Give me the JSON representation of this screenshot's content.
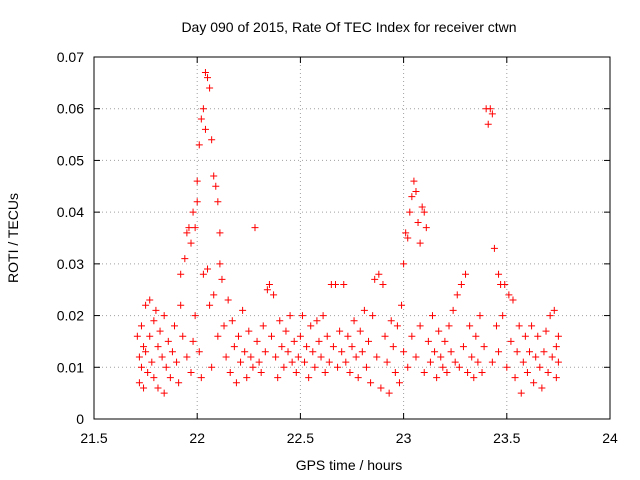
{
  "chart_data": {
    "type": "scatter",
    "title": "Day 090 of 2015, Rate Of TEC Index for receiver ctwn",
    "xlabel": "GPS time / hours",
    "ylabel": "ROTI / TECUs",
    "xlim": [
      21.5,
      24
    ],
    "ylim": [
      0,
      0.07
    ],
    "xticks": [
      "21.5",
      "22",
      "22.5",
      "23",
      "23.5",
      "24"
    ],
    "yticks": [
      "0",
      "0.01",
      "0.02",
      "0.03",
      "0.04",
      "0.05",
      "0.06",
      "0.07"
    ],
    "grid": true,
    "marker": "plus",
    "color": "#ff0000",
    "series": [
      {
        "name": "ROTI",
        "points": [
          [
            21.71,
            0.016
          ],
          [
            21.72,
            0.012
          ],
          [
            21.72,
            0.007
          ],
          [
            21.73,
            0.018
          ],
          [
            21.73,
            0.01
          ],
          [
            21.74,
            0.014
          ],
          [
            21.74,
            0.006
          ],
          [
            21.75,
            0.022
          ],
          [
            21.75,
            0.013
          ],
          [
            21.76,
            0.009
          ],
          [
            21.77,
            0.023
          ],
          [
            21.77,
            0.016
          ],
          [
            21.78,
            0.011
          ],
          [
            21.79,
            0.019
          ],
          [
            21.79,
            0.008
          ],
          [
            21.8,
            0.021
          ],
          [
            21.81,
            0.014
          ],
          [
            21.81,
            0.006
          ],
          [
            21.82,
            0.017
          ],
          [
            21.83,
            0.012
          ],
          [
            21.84,
            0.005
          ],
          [
            21.84,
            0.02
          ],
          [
            21.85,
            0.01
          ],
          [
            21.86,
            0.015
          ],
          [
            21.87,
            0.008
          ],
          [
            21.88,
            0.013
          ],
          [
            21.89,
            0.018
          ],
          [
            21.9,
            0.011
          ],
          [
            21.91,
            0.007
          ],
          [
            21.92,
            0.022
          ],
          [
            21.92,
            0.028
          ],
          [
            21.93,
            0.016
          ],
          [
            21.94,
            0.031
          ],
          [
            21.95,
            0.036
          ],
          [
            21.95,
            0.012
          ],
          [
            21.96,
            0.037
          ],
          [
            21.97,
            0.034
          ],
          [
            21.97,
            0.009
          ],
          [
            21.98,
            0.04
          ],
          [
            21.98,
            0.015
          ],
          [
            21.99,
            0.037
          ],
          [
            21.99,
            0.02
          ],
          [
            22.0,
            0.042
          ],
          [
            22.0,
            0.046
          ],
          [
            22.01,
            0.053
          ],
          [
            22.01,
            0.013
          ],
          [
            22.02,
            0.058
          ],
          [
            22.02,
            0.008
          ],
          [
            22.03,
            0.06
          ],
          [
            22.03,
            0.028
          ],
          [
            22.04,
            0.067
          ],
          [
            22.04,
            0.056
          ],
          [
            22.05,
            0.066
          ],
          [
            22.05,
            0.029
          ],
          [
            22.06,
            0.064
          ],
          [
            22.06,
            0.022
          ],
          [
            22.07,
            0.054
          ],
          [
            22.07,
            0.01
          ],
          [
            22.08,
            0.047
          ],
          [
            22.08,
            0.024
          ],
          [
            22.09,
            0.045
          ],
          [
            22.1,
            0.042
          ],
          [
            22.1,
            0.016
          ],
          [
            22.11,
            0.036
          ],
          [
            22.11,
            0.03
          ],
          [
            22.12,
            0.027
          ],
          [
            22.13,
            0.018
          ],
          [
            22.14,
            0.012
          ],
          [
            22.15,
            0.023
          ],
          [
            22.16,
            0.009
          ],
          [
            22.17,
            0.019
          ],
          [
            22.18,
            0.014
          ],
          [
            22.19,
            0.007
          ],
          [
            22.2,
            0.016
          ],
          [
            22.21,
            0.011
          ],
          [
            22.22,
            0.021
          ],
          [
            22.23,
            0.013
          ],
          [
            22.24,
            0.008
          ],
          [
            22.25,
            0.017
          ],
          [
            22.26,
            0.012
          ],
          [
            22.27,
            0.01
          ],
          [
            22.28,
            0.037
          ],
          [
            22.29,
            0.015
          ],
          [
            22.3,
            0.011
          ],
          [
            22.31,
            0.009
          ],
          [
            22.32,
            0.018
          ],
          [
            22.33,
            0.013
          ],
          [
            22.34,
            0.025
          ],
          [
            22.35,
            0.026
          ],
          [
            22.36,
            0.016
          ],
          [
            22.37,
            0.024
          ],
          [
            22.38,
            0.012
          ],
          [
            22.39,
            0.008
          ],
          [
            22.4,
            0.019
          ],
          [
            22.41,
            0.014
          ],
          [
            22.42,
            0.01
          ],
          [
            22.43,
            0.017
          ],
          [
            22.44,
            0.013
          ],
          [
            22.45,
            0.02
          ],
          [
            22.46,
            0.011
          ],
          [
            22.47,
            0.015
          ],
          [
            22.48,
            0.009
          ],
          [
            22.49,
            0.012
          ],
          [
            22.5,
            0.016
          ],
          [
            22.51,
            0.02
          ],
          [
            22.52,
            0.011
          ],
          [
            22.53,
            0.014
          ],
          [
            22.54,
            0.008
          ],
          [
            22.55,
            0.018
          ],
          [
            22.56,
            0.013
          ],
          [
            22.57,
            0.01
          ],
          [
            22.58,
            0.019
          ],
          [
            22.59,
            0.015
          ],
          [
            22.6,
            0.012
          ],
          [
            22.61,
            0.02
          ],
          [
            22.62,
            0.009
          ],
          [
            22.63,
            0.016
          ],
          [
            22.64,
            0.011
          ],
          [
            22.65,
            0.026
          ],
          [
            22.66,
            0.014
          ],
          [
            22.67,
            0.026
          ],
          [
            22.68,
            0.01
          ],
          [
            22.69,
            0.017
          ],
          [
            22.7,
            0.013
          ],
          [
            22.71,
            0.026
          ],
          [
            22.72,
            0.011
          ],
          [
            22.73,
            0.016
          ],
          [
            22.74,
            0.009
          ],
          [
            22.75,
            0.014
          ],
          [
            22.76,
            0.019
          ],
          [
            22.77,
            0.012
          ],
          [
            22.78,
            0.008
          ],
          [
            22.79,
            0.017
          ],
          [
            22.8,
            0.013
          ],
          [
            22.81,
            0.021
          ],
          [
            22.82,
            0.01
          ],
          [
            22.83,
            0.015
          ],
          [
            22.84,
            0.007
          ],
          [
            22.85,
            0.02
          ],
          [
            22.86,
            0.027
          ],
          [
            22.87,
            0.012
          ],
          [
            22.88,
            0.028
          ],
          [
            22.89,
            0.006
          ],
          [
            22.9,
            0.026
          ],
          [
            22.91,
            0.016
          ],
          [
            22.92,
            0.011
          ],
          [
            22.93,
            0.005
          ],
          [
            22.94,
            0.019
          ],
          [
            22.95,
            0.014
          ],
          [
            22.96,
            0.009
          ],
          [
            22.97,
            0.018
          ],
          [
            22.98,
            0.007
          ],
          [
            22.99,
            0.022
          ],
          [
            23.0,
            0.03
          ],
          [
            23.0,
            0.013
          ],
          [
            23.01,
            0.036
          ],
          [
            23.02,
            0.035
          ],
          [
            23.02,
            0.01
          ],
          [
            23.03,
            0.04
          ],
          [
            23.04,
            0.043
          ],
          [
            23.04,
            0.016
          ],
          [
            23.05,
            0.046
          ],
          [
            23.06,
            0.044
          ],
          [
            23.06,
            0.012
          ],
          [
            23.07,
            0.038
          ],
          [
            23.08,
            0.034
          ],
          [
            23.08,
            0.018
          ],
          [
            23.09,
            0.041
          ],
          [
            23.1,
            0.04
          ],
          [
            23.1,
            0.009
          ],
          [
            23.11,
            0.037
          ],
          [
            23.12,
            0.015
          ],
          [
            23.13,
            0.011
          ],
          [
            23.14,
            0.02
          ],
          [
            23.15,
            0.013
          ],
          [
            23.16,
            0.008
          ],
          [
            23.17,
            0.017
          ],
          [
            23.18,
            0.012
          ],
          [
            23.19,
            0.01
          ],
          [
            23.2,
            0.015
          ],
          [
            23.21,
            0.009
          ],
          [
            23.22,
            0.018
          ],
          [
            23.23,
            0.013
          ],
          [
            23.24,
            0.021
          ],
          [
            23.25,
            0.011
          ],
          [
            23.26,
            0.024
          ],
          [
            23.27,
            0.01
          ],
          [
            23.28,
            0.026
          ],
          [
            23.29,
            0.014
          ],
          [
            23.3,
            0.028
          ],
          [
            23.31,
            0.009
          ],
          [
            23.32,
            0.018
          ],
          [
            23.33,
            0.012
          ],
          [
            23.34,
            0.008
          ],
          [
            23.35,
            0.016
          ],
          [
            23.36,
            0.011
          ],
          [
            23.37,
            0.02
          ],
          [
            23.38,
            0.009
          ],
          [
            23.39,
            0.014
          ],
          [
            23.4,
            0.06
          ],
          [
            23.41,
            0.057
          ],
          [
            23.42,
            0.06
          ],
          [
            23.43,
            0.059
          ],
          [
            23.43,
            0.011
          ],
          [
            23.44,
            0.033
          ],
          [
            23.45,
            0.018
          ],
          [
            23.46,
            0.028
          ],
          [
            23.46,
            0.013
          ],
          [
            23.47,
            0.026
          ],
          [
            23.48,
            0.02
          ],
          [
            23.49,
            0.026
          ],
          [
            23.5,
            0.01
          ],
          [
            23.51,
            0.024
          ],
          [
            23.52,
            0.015
          ],
          [
            23.53,
            0.023
          ],
          [
            23.54,
            0.008
          ],
          [
            23.55,
            0.013
          ],
          [
            23.56,
            0.018
          ],
          [
            23.57,
            0.005
          ],
          [
            23.58,
            0.011
          ],
          [
            23.59,
            0.016
          ],
          [
            23.6,
            0.009
          ],
          [
            23.61,
            0.013
          ],
          [
            23.62,
            0.018
          ],
          [
            23.63,
            0.007
          ],
          [
            23.64,
            0.012
          ],
          [
            23.65,
            0.016
          ],
          [
            23.66,
            0.01
          ],
          [
            23.67,
            0.006
          ],
          [
            23.68,
            0.013
          ],
          [
            23.69,
            0.017
          ],
          [
            23.7,
            0.009
          ],
          [
            23.71,
            0.02
          ],
          [
            23.72,
            0.012
          ],
          [
            23.73,
            0.021
          ],
          [
            23.74,
            0.008
          ],
          [
            23.74,
            0.014
          ],
          [
            23.75,
            0.016
          ],
          [
            23.75,
            0.011
          ]
        ]
      }
    ]
  }
}
